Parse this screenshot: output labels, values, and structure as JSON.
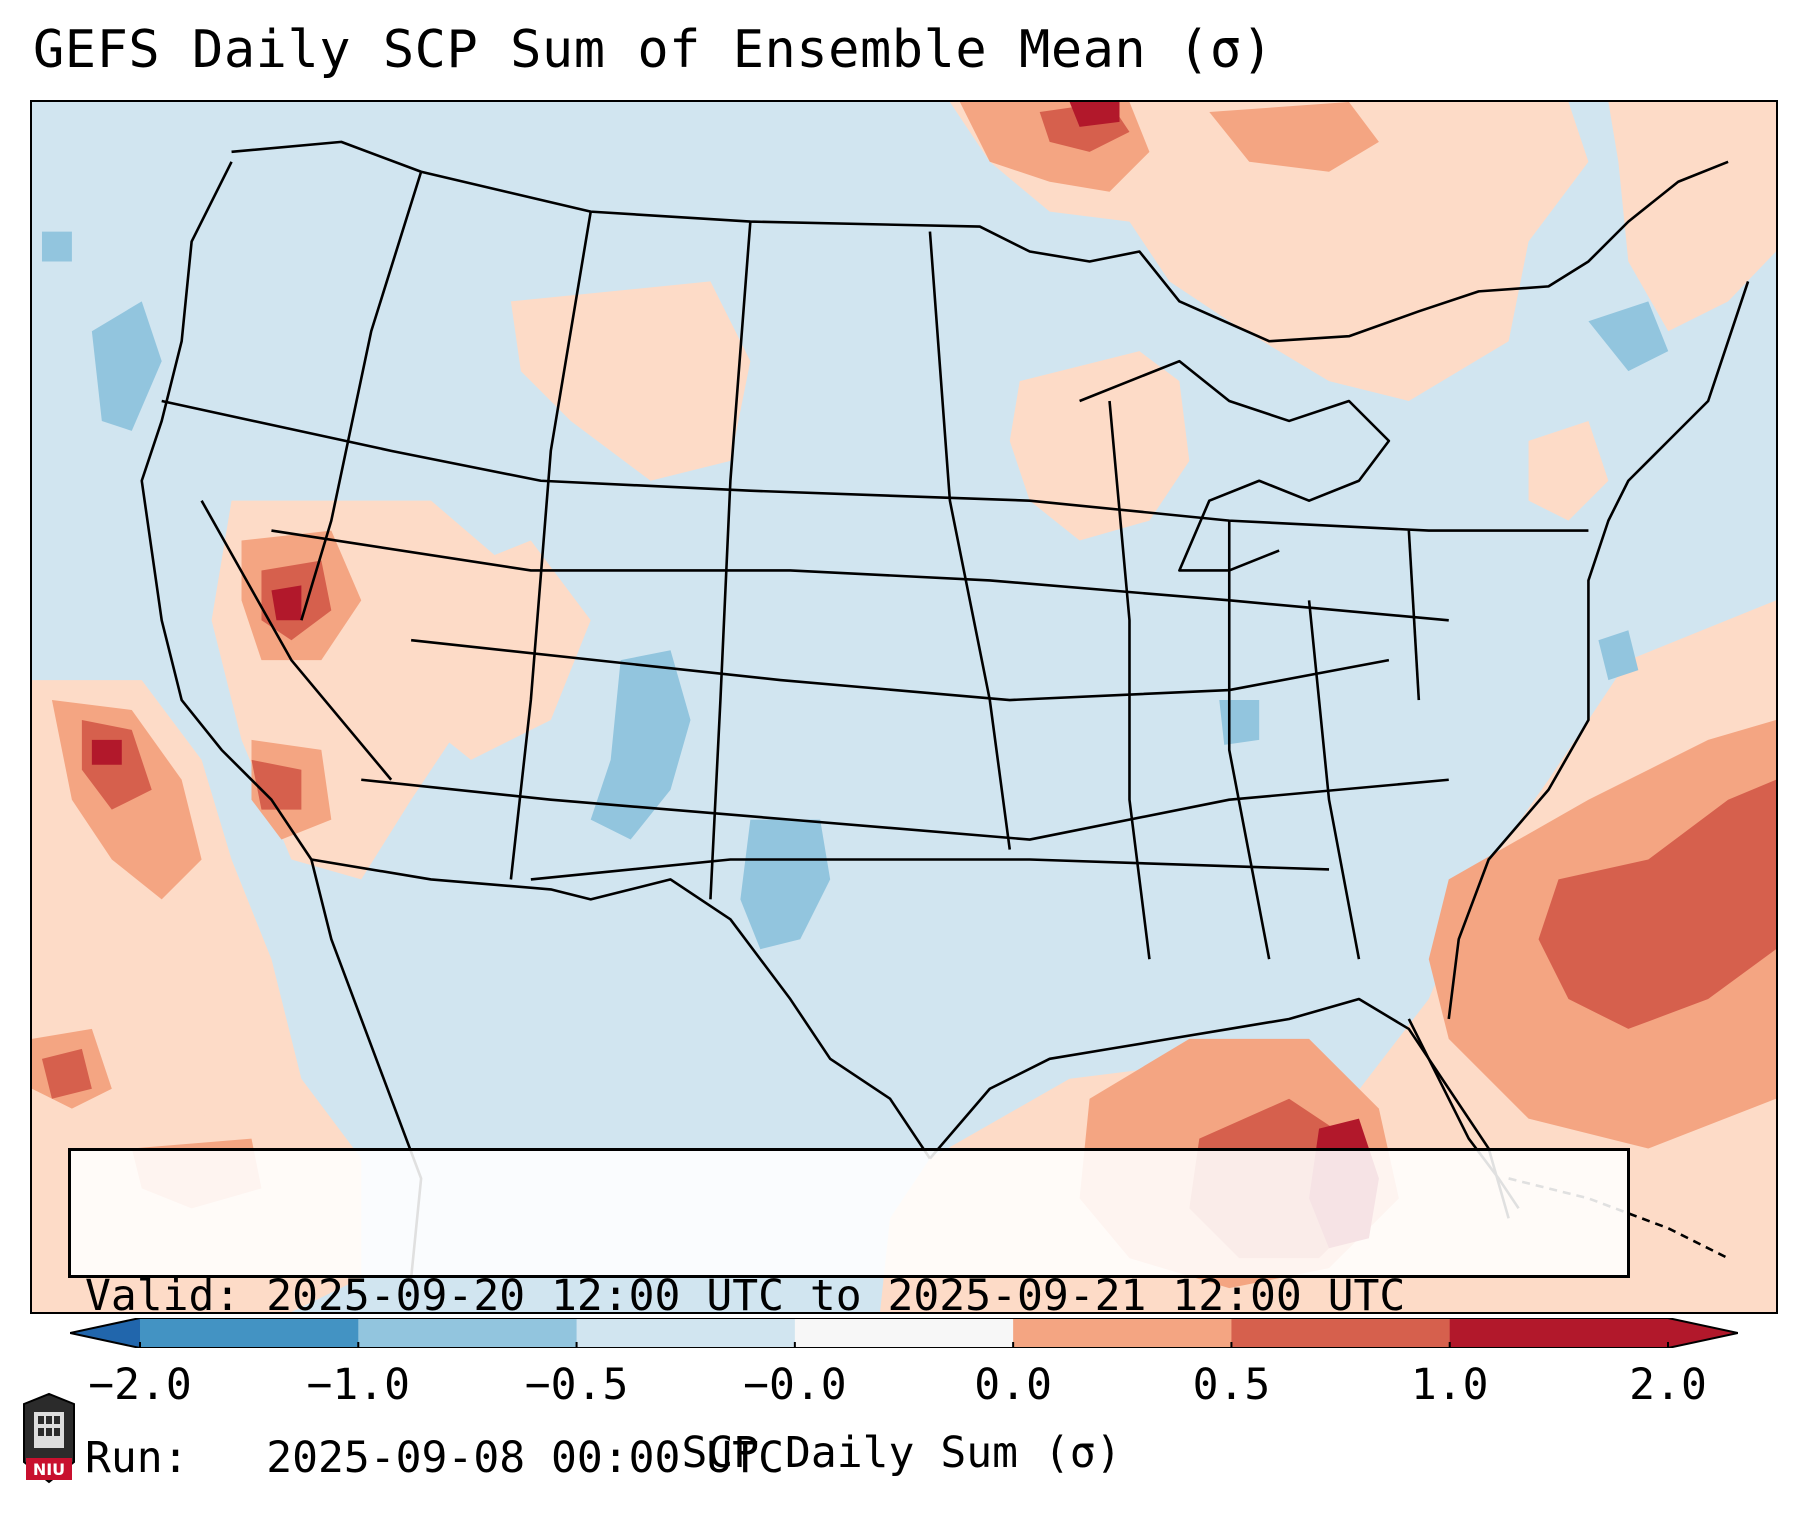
{
  "title": "GEFS Daily SCP Sum of Ensemble Mean (σ)",
  "valid_box": {
    "valid_line": "Valid: 2025-09-20 12:00 UTC to 2025-09-21 12:00 UTC",
    "run_line": "Run:   2025-09-08 00:00 UTC"
  },
  "colorbar": {
    "ticks": [
      "−2.0",
      "−1.0",
      "−0.5",
      "−0.0",
      "0.0",
      "0.5",
      "1.0",
      "2.0"
    ],
    "label": "SCP Daily Sum (σ)",
    "colors": [
      "#4393c3",
      "#92c5de",
      "#d1e5f0",
      "#f7f7f7",
      "#fddbc7",
      "#f4a582",
      "#d6604d",
      "#b2182b"
    ],
    "over_color": "#67001f",
    "under_color": "#2166ac"
  },
  "map": {
    "background_color": "#d1e5f0",
    "border_color": "#000000"
  },
  "logo": {
    "text": "NIU",
    "color": "#c8102e"
  }
}
